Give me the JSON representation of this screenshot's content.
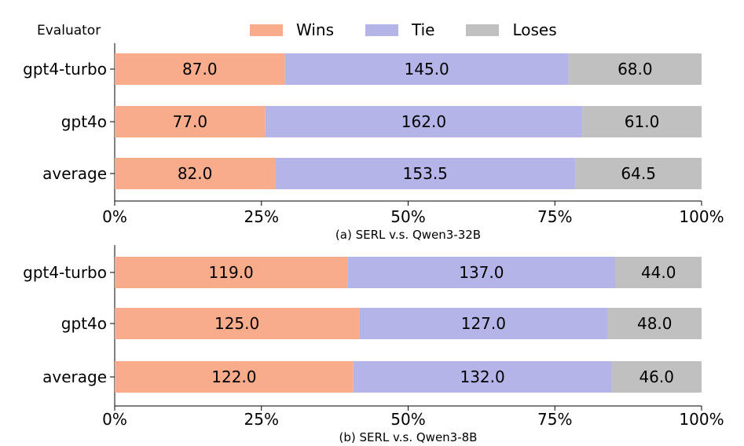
{
  "legend": {
    "title": "Evaluator",
    "items": [
      {
        "name": "Wins",
        "color": "#f8ac8c"
      },
      {
        "name": "Tie",
        "color": "#b4b4e8"
      },
      {
        "name": "Loses",
        "color": "#c0c0c0"
      }
    ]
  },
  "chart_data": [
    {
      "type": "bar",
      "orientation": "horizontal",
      "stacked": true,
      "normalized": true,
      "caption": "(a) SERL v.s. Qwen3-32B",
      "categories": [
        "gpt4-turbo",
        "gpt4o",
        "average"
      ],
      "series": [
        {
          "name": "Wins",
          "values": [
            87.0,
            77.0,
            82.0
          ],
          "labels": [
            "87.0",
            "77.0",
            "82.0"
          ]
        },
        {
          "name": "Tie",
          "values": [
            145.0,
            162.0,
            153.5
          ],
          "labels": [
            "145.0",
            "162.0",
            "153.5"
          ]
        },
        {
          "name": "Loses",
          "values": [
            68.0,
            61.0,
            64.5
          ],
          "labels": [
            "68.0",
            "61.0",
            "64.5"
          ]
        }
      ],
      "xlim": [
        0,
        100
      ],
      "xticks": [
        "0%",
        "25%",
        "50%",
        "75%",
        "100%"
      ]
    },
    {
      "type": "bar",
      "orientation": "horizontal",
      "stacked": true,
      "normalized": true,
      "caption": "(b) SERL v.s. Qwen3-8B",
      "categories": [
        "gpt4-turbo",
        "gpt4o",
        "average"
      ],
      "series": [
        {
          "name": "Wins",
          "values": [
            119.0,
            125.0,
            122.0
          ],
          "labels": [
            "119.0",
            "125.0",
            "122.0"
          ]
        },
        {
          "name": "Tie",
          "values": [
            137.0,
            127.0,
            132.0
          ],
          "labels": [
            "137.0",
            "127.0",
            "132.0"
          ]
        },
        {
          "name": "Loses",
          "values": [
            44.0,
            48.0,
            46.0
          ],
          "labels": [
            "44.0",
            "48.0",
            "46.0"
          ]
        }
      ],
      "xlim": [
        0,
        100
      ],
      "xticks": [
        "0%",
        "25%",
        "50%",
        "75%",
        "100%"
      ]
    }
  ]
}
